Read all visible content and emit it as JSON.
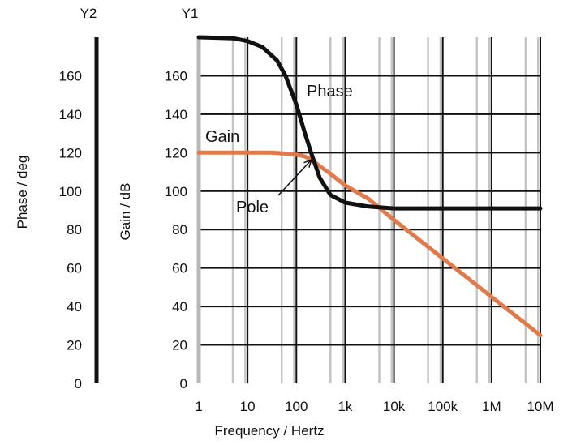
{
  "chart_data": {
    "type": "line",
    "title": "",
    "xlabel": "Frequency / Hertz",
    "x_scale": "log",
    "x_ticks": [
      1,
      10,
      100,
      1000,
      10000,
      100000,
      1000000,
      10000000
    ],
    "x_tick_labels": [
      "1",
      "10",
      "100",
      "1k",
      "10k",
      "100k",
      "1M",
      "10M"
    ],
    "xlim": [
      1,
      10000000
    ],
    "y1": {
      "header": "Y1",
      "label": "Gain / dB",
      "ticks": [
        0,
        20,
        40,
        60,
        80,
        100,
        120,
        140,
        160
      ],
      "ylim": [
        0,
        180
      ]
    },
    "y2": {
      "header": "Y2",
      "label": "Phase / deg",
      "ticks": [
        0,
        20,
        40,
        60,
        80,
        100,
        120,
        140,
        160
      ],
      "ylim": [
        0,
        180
      ]
    },
    "grid": true,
    "series": [
      {
        "name": "Gain",
        "axis": "y1",
        "color": "#e07a4a",
        "x": [
          1,
          10,
          30,
          60,
          100,
          150,
          200,
          300,
          500,
          1000,
          3000,
          10000,
          100000,
          1000000,
          10000000
        ],
        "y": [
          120,
          120,
          120,
          119.5,
          119,
          118,
          116.5,
          113,
          109,
          103,
          96,
          85,
          65,
          45,
          25
        ]
      },
      {
        "name": "Phase",
        "axis": "y2",
        "color": "#111111",
        "x": [
          1,
          5,
          10,
          20,
          40,
          60,
          100,
          150,
          200,
          300,
          500,
          1000,
          3000,
          10000,
          100000,
          1000000,
          10000000
        ],
        "y": [
          180,
          179.5,
          178,
          175,
          168,
          160,
          145,
          130,
          120,
          107,
          98,
          94,
          92,
          91,
          91,
          91,
          91
        ]
      }
    ],
    "annotations": [
      {
        "text": "Pole",
        "x": 150,
        "y": 118
      }
    ]
  }
}
